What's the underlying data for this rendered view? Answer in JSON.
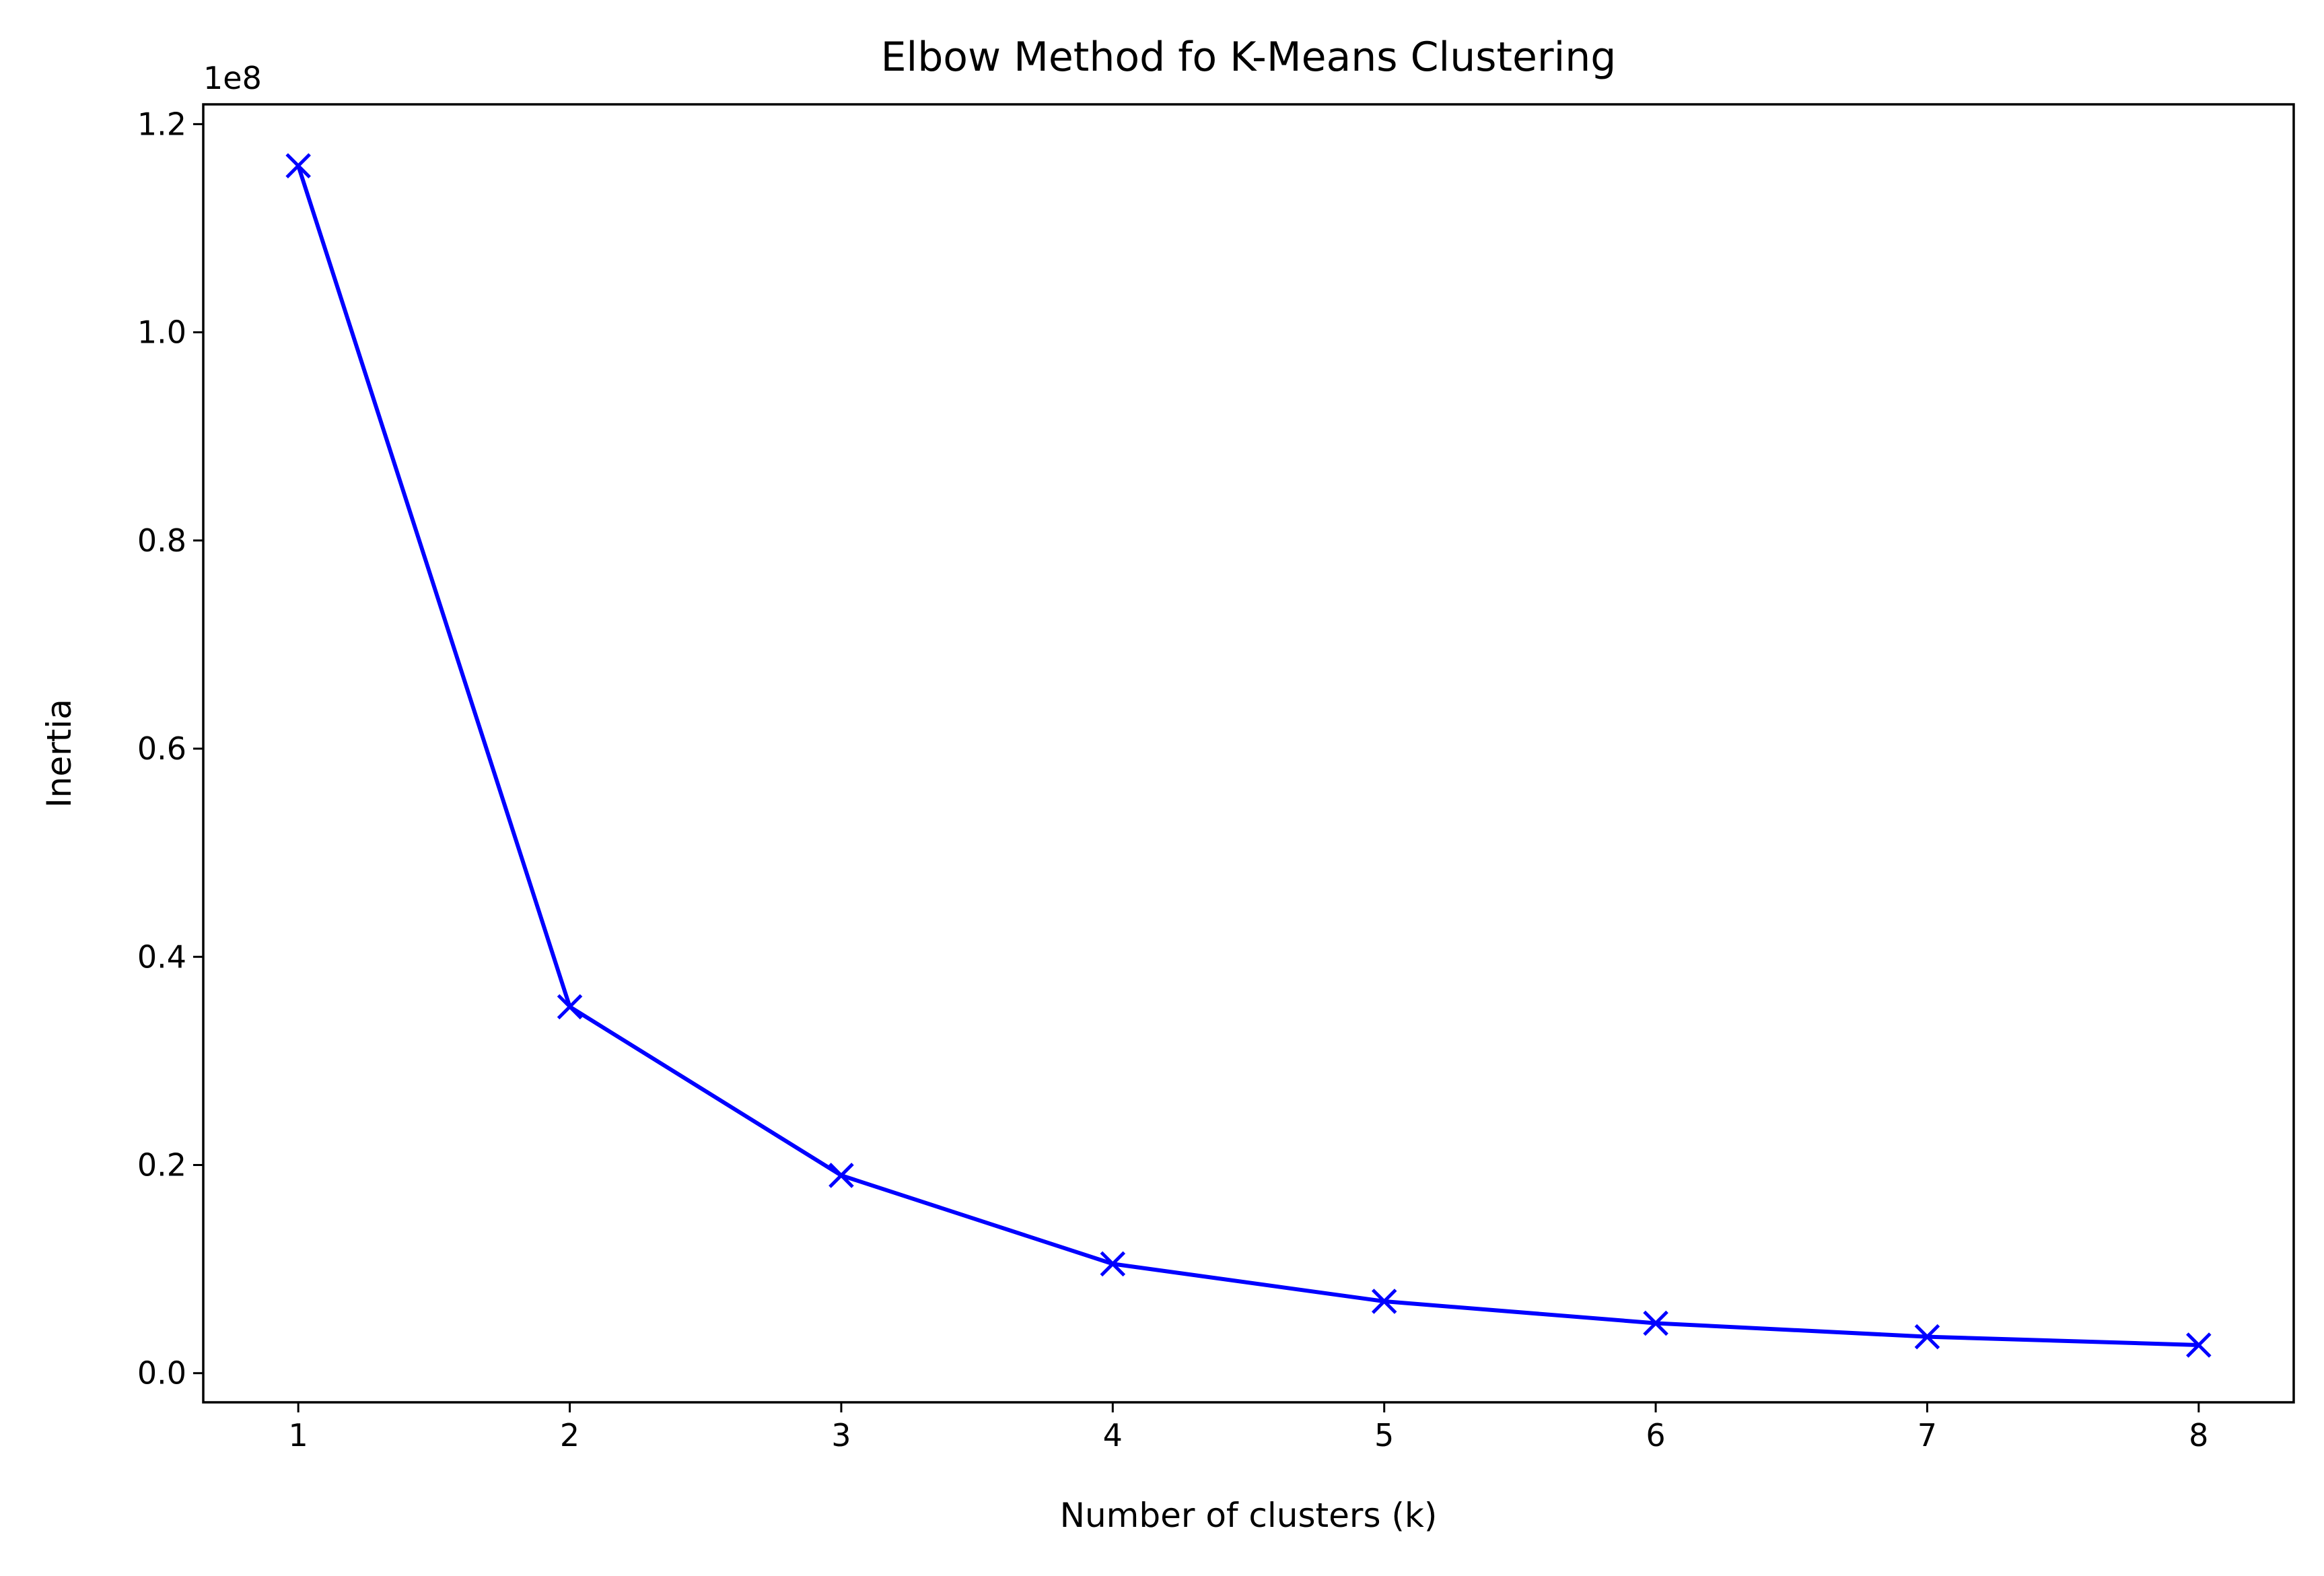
{
  "chart_data": {
    "type": "line",
    "title": "Elbow Method fo K-Means Clustering",
    "xlabel": "Number of clusters (k)",
    "ylabel": "Inertia",
    "y_offset_label": "1e8",
    "x": [
      1,
      2,
      3,
      4,
      5,
      6,
      7,
      8
    ],
    "series": [
      {
        "values": [
          116000000,
          35200000,
          19000000,
          10500000,
          6900000,
          4800000,
          3500000,
          2700000
        ],
        "marker": "x",
        "color": "#0000ff"
      }
    ],
    "x_ticks": [
      1,
      2,
      3,
      4,
      5,
      6,
      7,
      8
    ],
    "x_tick_labels": [
      "1",
      "2",
      "3",
      "4",
      "5",
      "6",
      "7",
      "8"
    ],
    "y_ticks": [
      0,
      20000000,
      40000000,
      60000000,
      80000000,
      100000000,
      120000000
    ],
    "y_tick_labels": [
      "0.0",
      "0.2",
      "0.4",
      "0.6",
      "0.8",
      "1.0",
      "1.2"
    ],
    "xlim": [
      0.65,
      8.35
    ],
    "ylim": [
      -2800000,
      121900000
    ],
    "grid": false,
    "legend": "none"
  }
}
